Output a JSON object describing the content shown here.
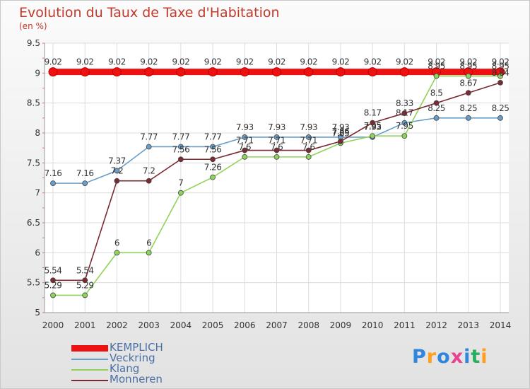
{
  "header": {
    "title": "Evolution du Taux de Taxe d'Habitation",
    "subtitle": "(en %)"
  },
  "logo": {
    "text": "Proxiti"
  },
  "chart_data": {
    "type": "line",
    "title": "Evolution du Taux de Taxe d'Habitation",
    "subtitle": "(en %)",
    "xlabel": "",
    "ylabel": "",
    "x": [
      "2000",
      "2001",
      "2002",
      "2003",
      "2004",
      "2005",
      "2006",
      "2007",
      "2008",
      "2009",
      "2010",
      "2011",
      "2012",
      "2013",
      "2014"
    ],
    "ylim": [
      5,
      9.5
    ],
    "yticks": [
      "5",
      "5.5",
      "6",
      "6.5",
      "7",
      "7.5",
      "8",
      "8.5",
      "9",
      "9.5"
    ],
    "grid": true,
    "legend_position": "bottom-left",
    "series": [
      {
        "name": "KEMPLICH",
        "color": "#ee1111",
        "values": [
          9.02,
          9.02,
          9.02,
          9.02,
          9.02,
          9.02,
          9.02,
          9.02,
          9.02,
          9.02,
          9.02,
          9.02,
          9.02,
          9.02,
          9.02
        ],
        "labels": [
          "9.02",
          "9.02",
          "9.02",
          "9.02",
          "9.02",
          "9.02",
          "9.02",
          "9.02",
          "9.02",
          "9.02",
          "9.02",
          "9.02",
          "9.02",
          "9.02",
          "9.02"
        ]
      },
      {
        "name": "Veckring",
        "color": "#6a9ec8",
        "values": [
          7.16,
          7.16,
          7.37,
          7.77,
          7.77,
          7.77,
          7.93,
          7.93,
          7.93,
          7.93,
          7.93,
          8.17,
          8.25,
          8.25,
          8.25
        ],
        "labels": [
          "7.16",
          "7.16",
          "7.37",
          "7.77",
          "7.77",
          "7.77",
          "7.93",
          "7.93",
          "7.93",
          "7.93",
          "7.93",
          "8.17",
          "8.25",
          "8.25",
          "8.25"
        ]
      },
      {
        "name": "Klang",
        "color": "#8fd35a",
        "values": [
          5.29,
          5.29,
          6,
          6,
          7,
          7.26,
          7.6,
          7.6,
          7.6,
          7.83,
          7.95,
          7.95,
          8.95,
          8.95,
          8.95
        ],
        "labels": [
          "5.29",
          "5.29",
          "6",
          "6",
          "7",
          "7.26",
          "7.6",
          "7.6",
          "7.6",
          "7.83",
          "7.95",
          "7.95",
          "8.95",
          "8.95",
          "8.95"
        ]
      },
      {
        "name": "Monneren",
        "color": "#7a2a32",
        "values": [
          5.54,
          5.54,
          7.2,
          7.2,
          7.56,
          7.56,
          7.71,
          7.71,
          7.71,
          7.86,
          8.17,
          8.33,
          8.5,
          8.67,
          8.84
        ],
        "labels": [
          "5.54",
          "5.54",
          "7.2",
          "7.2",
          "7.56",
          "7.56",
          "7.71",
          "7.71",
          "7.71",
          "7.86",
          "8.17",
          "8.33",
          "8.5",
          "8.67",
          "8.84"
        ]
      }
    ]
  }
}
